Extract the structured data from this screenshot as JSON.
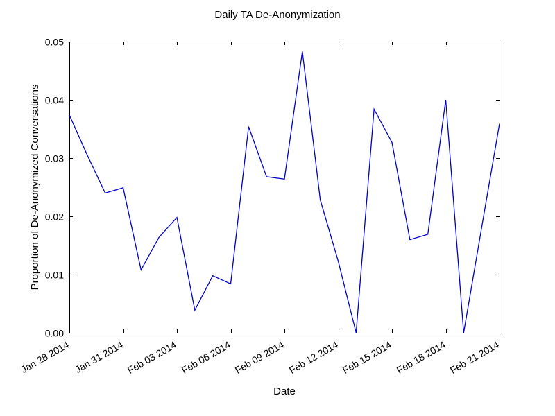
{
  "chart_data": {
    "type": "line",
    "title": "Daily TA De-Anonymization",
    "xlabel": "Date",
    "ylabel": "Proportion of De-Anonymized Conversations",
    "xlim": [
      "2014-01-28",
      "2014-02-21"
    ],
    "ylim": [
      0,
      0.05
    ],
    "yticks": [
      0.0,
      0.01,
      0.02,
      0.03,
      0.04,
      0.05
    ],
    "ytick_labels": [
      "0.00",
      "0.01",
      "0.02",
      "0.03",
      "0.04",
      "0.05"
    ],
    "xticks": [
      "2014-01-28",
      "2014-01-31",
      "2014-02-03",
      "2014-02-06",
      "2014-02-09",
      "2014-02-12",
      "2014-02-15",
      "2014-02-18",
      "2014-02-21"
    ],
    "xtick_labels": [
      "Jan 28 2014",
      "Jan 31 2014",
      "Feb 03 2014",
      "Feb 06 2014",
      "Feb 09 2014",
      "Feb 12 2014",
      "Feb 15 2014",
      "Feb 18 2014",
      "Feb 21 2014"
    ],
    "grid": false,
    "line_color": "#0000cc",
    "x": [
      "2014-01-28",
      "2014-01-29",
      "2014-01-30",
      "2014-01-31",
      "2014-02-01",
      "2014-02-02",
      "2014-02-03",
      "2014-02-04",
      "2014-02-05",
      "2014-02-06",
      "2014-02-07",
      "2014-02-08",
      "2014-02-09",
      "2014-02-10",
      "2014-02-11",
      "2014-02-12",
      "2014-02-13",
      "2014-02-14",
      "2014-02-15",
      "2014-02-16",
      "2014-02-17",
      "2014-02-18",
      "2014-02-19",
      "2014-02-20",
      "2014-02-21"
    ],
    "series": [
      {
        "values": [
          0.0374,
          0.0305,
          0.024,
          0.0249,
          0.0108,
          0.0164,
          0.0198,
          0.0039,
          0.0098,
          0.0084,
          0.0354,
          0.0268,
          0.0264,
          0.0483,
          0.0228,
          0.0123,
          0.0,
          0.0384,
          0.0327,
          0.016,
          0.0169,
          0.04,
          0.0,
          0.018,
          0.0359
        ]
      }
    ]
  }
}
